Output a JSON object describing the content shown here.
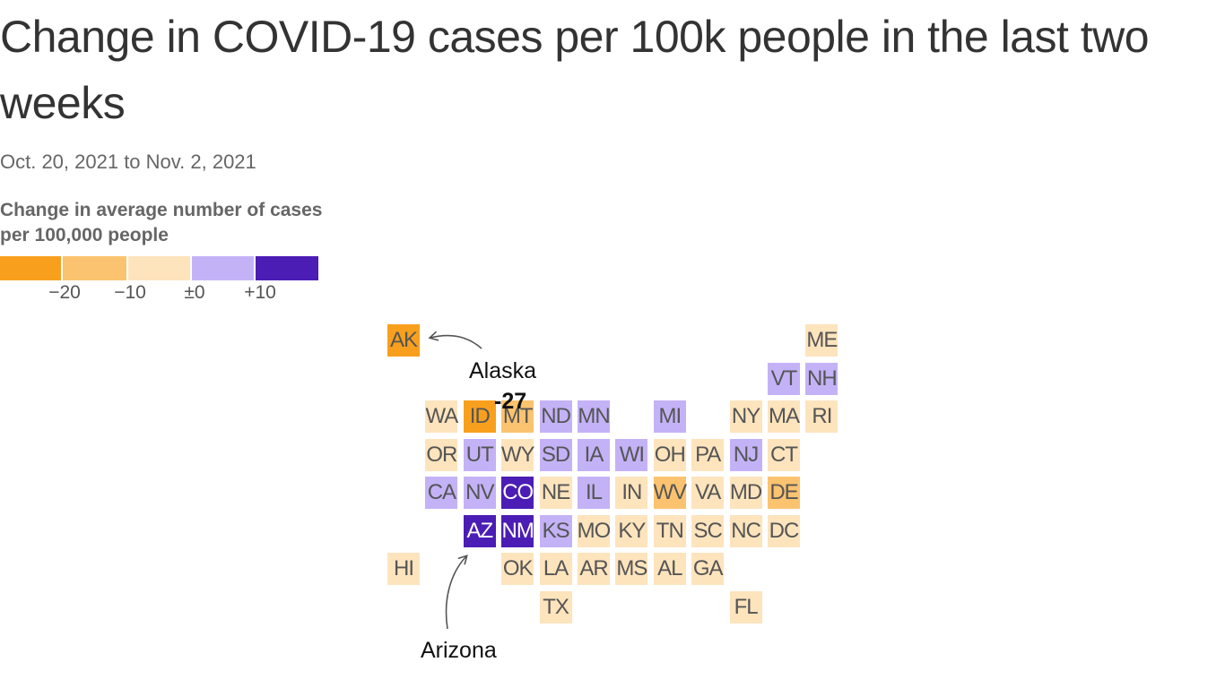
{
  "title": "Change in COVID-19 cases per 100k people in the last two weeks",
  "subtitle": "Oct. 20, 2021 to Nov. 2, 2021",
  "colors": {
    "bin1": "#f8a01d",
    "bin2": "#fbc36f",
    "bin3": "#fde4bd",
    "bin4": "#c4b2f7",
    "bin5": "#4b1db5"
  },
  "legend": {
    "title": "Change in average number of cases per 100,000 people",
    "bins": [
      "bin1",
      "bin2",
      "bin3",
      "bin4",
      "bin5"
    ],
    "ticks": [
      "−20",
      "−10",
      "±0",
      "+10"
    ]
  },
  "annotations": {
    "alaska": {
      "label": "Alaska",
      "value": "-27"
    },
    "arizona": {
      "label": "Arizona"
    }
  },
  "chart_data": {
    "type": "tile-map",
    "states": [
      {
        "abbr": "AK",
        "bin": "bin1"
      },
      {
        "abbr": "ME",
        "bin": "bin3"
      },
      {
        "abbr": "VT",
        "bin": "bin4"
      },
      {
        "abbr": "NH",
        "bin": "bin4"
      },
      {
        "abbr": "WA",
        "bin": "bin3"
      },
      {
        "abbr": "ID",
        "bin": "bin1"
      },
      {
        "abbr": "MT",
        "bin": "bin2"
      },
      {
        "abbr": "ND",
        "bin": "bin4"
      },
      {
        "abbr": "MN",
        "bin": "bin4"
      },
      {
        "abbr": "MI",
        "bin": "bin4"
      },
      {
        "abbr": "NY",
        "bin": "bin3"
      },
      {
        "abbr": "MA",
        "bin": "bin3"
      },
      {
        "abbr": "RI",
        "bin": "bin3"
      },
      {
        "abbr": "OR",
        "bin": "bin3"
      },
      {
        "abbr": "UT",
        "bin": "bin4"
      },
      {
        "abbr": "WY",
        "bin": "bin3"
      },
      {
        "abbr": "SD",
        "bin": "bin4"
      },
      {
        "abbr": "IA",
        "bin": "bin4"
      },
      {
        "abbr": "WI",
        "bin": "bin4"
      },
      {
        "abbr": "OH",
        "bin": "bin3"
      },
      {
        "abbr": "PA",
        "bin": "bin3"
      },
      {
        "abbr": "NJ",
        "bin": "bin4"
      },
      {
        "abbr": "CT",
        "bin": "bin3"
      },
      {
        "abbr": "CA",
        "bin": "bin4"
      },
      {
        "abbr": "NV",
        "bin": "bin4"
      },
      {
        "abbr": "CO",
        "bin": "bin5"
      },
      {
        "abbr": "NE",
        "bin": "bin3"
      },
      {
        "abbr": "IL",
        "bin": "bin4"
      },
      {
        "abbr": "IN",
        "bin": "bin3"
      },
      {
        "abbr": "WV",
        "bin": "bin2"
      },
      {
        "abbr": "VA",
        "bin": "bin3"
      },
      {
        "abbr": "MD",
        "bin": "bin3"
      },
      {
        "abbr": "DE",
        "bin": "bin2"
      },
      {
        "abbr": "AZ",
        "bin": "bin5"
      },
      {
        "abbr": "NM",
        "bin": "bin5"
      },
      {
        "abbr": "KS",
        "bin": "bin4"
      },
      {
        "abbr": "MO",
        "bin": "bin3"
      },
      {
        "abbr": "KY",
        "bin": "bin3"
      },
      {
        "abbr": "TN",
        "bin": "bin3"
      },
      {
        "abbr": "SC",
        "bin": "bin3"
      },
      {
        "abbr": "NC",
        "bin": "bin3"
      },
      {
        "abbr": "DC",
        "bin": "bin3"
      },
      {
        "abbr": "HI",
        "bin": "bin3"
      },
      {
        "abbr": "OK",
        "bin": "bin3"
      },
      {
        "abbr": "LA",
        "bin": "bin3"
      },
      {
        "abbr": "AR",
        "bin": "bin3"
      },
      {
        "abbr": "MS",
        "bin": "bin3"
      },
      {
        "abbr": "AL",
        "bin": "bin3"
      },
      {
        "abbr": "GA",
        "bin": "bin3"
      },
      {
        "abbr": "TX",
        "bin": "bin3"
      },
      {
        "abbr": "FL",
        "bin": "bin3"
      }
    ]
  }
}
